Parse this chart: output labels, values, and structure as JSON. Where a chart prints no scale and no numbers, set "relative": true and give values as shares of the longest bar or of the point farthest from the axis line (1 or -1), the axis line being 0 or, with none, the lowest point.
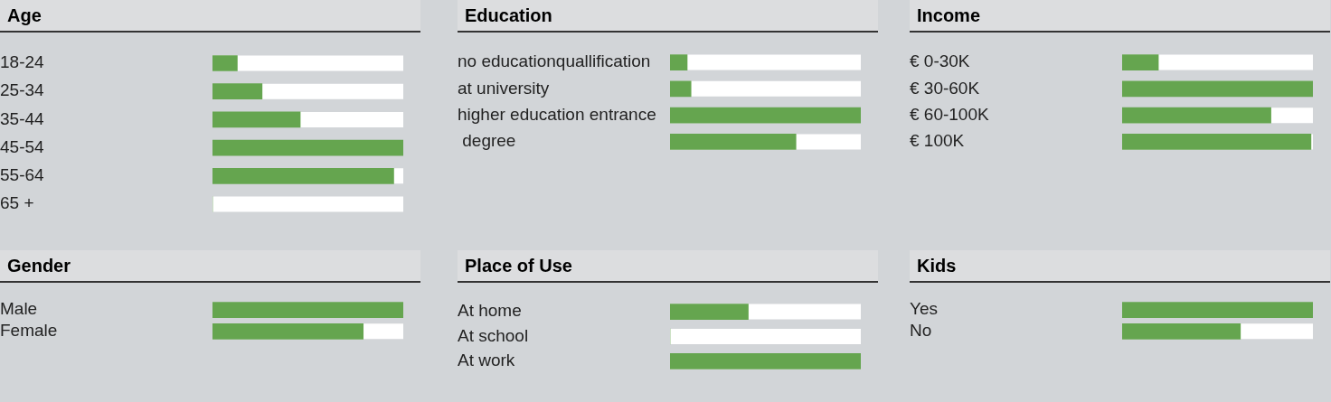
{
  "chart_data": [
    {
      "type": "bar",
      "orientation": "horizontal",
      "relative": true,
      "title": "Age",
      "categories": [
        "18-24",
        "25-34",
        "35-44",
        "45-54",
        "55-64",
        "65 +"
      ],
      "values": [
        0.13,
        0.26,
        0.46,
        1,
        0.95,
        0
      ],
      "color": "#65a54f"
    },
    {
      "type": "bar",
      "orientation": "horizontal",
      "relative": true,
      "title": "Education",
      "categories": [
        "no educationquallification",
        "at university",
        "higher education entrance",
        " degree"
      ],
      "values": [
        0.09,
        0.11,
        1,
        0.66
      ],
      "color": "#65a54f"
    },
    {
      "type": "bar",
      "orientation": "horizontal",
      "relative": true,
      "title": "Income",
      "categories": [
        "€ 0-30K",
        "€ 30-60K",
        "€ 60-100K",
        "€ 100K"
      ],
      "values": [
        0.19,
        1,
        0.78,
        0.99
      ],
      "color": "#65a54f"
    },
    {
      "type": "bar",
      "orientation": "horizontal",
      "relative": true,
      "title": "Gender",
      "categories": [
        "Male",
        "Female"
      ],
      "values": [
        1,
        0.79
      ],
      "color": "#65a54f"
    },
    {
      "type": "bar",
      "orientation": "horizontal",
      "relative": true,
      "title": "Place of Use",
      "categories": [
        "At home",
        "At school",
        "At work"
      ],
      "values": [
        0.41,
        0,
        1
      ],
      "color": "#65a54f"
    },
    {
      "type": "bar",
      "orientation": "horizontal",
      "relative": true,
      "title": "Kids",
      "categories": [
        "Yes",
        "No"
      ],
      "values": [
        1,
        0.62
      ],
      "color": "#65a54f"
    }
  ]
}
